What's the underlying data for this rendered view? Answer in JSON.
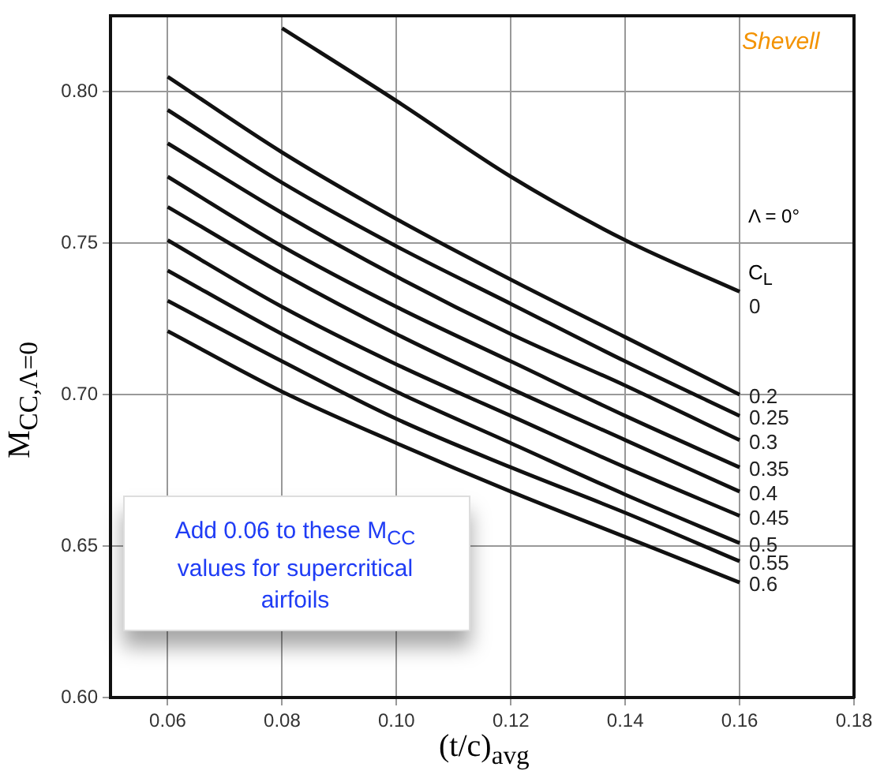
{
  "chart_data": {
    "type": "line",
    "xlabel": "(t/c)$_{avg}$",
    "ylabel": "M$_{CC,Λ=0}$",
    "legend_title": "C$_{L}$",
    "annotations": [
      "Shevell",
      "Λ = 0°",
      "Add 0.06 to these M$_{CC}$ values for supercritical airfoils"
    ],
    "x": [
      0.06,
      0.08,
      0.1,
      0.12,
      0.14,
      0.16
    ],
    "xlim": [
      0.05,
      0.18
    ],
    "xticks": [
      0.06,
      0.08,
      {
        "value": 0.1,
        "label": "0.10"
      },
      0.12,
      0.14,
      0.16,
      0.18
    ],
    "ylim": [
      0.6,
      0.825
    ],
    "yticks": [
      {
        "value": 0.6,
        "label": "0.60"
      },
      0.65,
      {
        "value": 0.7,
        "label": "0.70"
      },
      0.75,
      {
        "value": 0.8,
        "label": "0.80"
      }
    ],
    "grid": true,
    "legend": false,
    "marker": "none",
    "line_style": "solid",
    "series": [
      {
        "name": "0",
        "color": "#111111",
        "values": [
          null,
          0.821,
          0.797,
          0.772,
          0.751,
          0.734
        ]
      },
      {
        "name": "0.2",
        "color": "#111111",
        "values": [
          0.805,
          0.78,
          0.758,
          0.738,
          0.719,
          0.7
        ]
      },
      {
        "name": "0.25",
        "color": "#111111",
        "values": [
          0.794,
          0.77,
          0.749,
          0.73,
          0.711,
          0.693
        ]
      },
      {
        "name": "0.3",
        "color": "#111111",
        "values": [
          0.783,
          0.76,
          0.739,
          0.72,
          0.703,
          0.685
        ]
      },
      {
        "name": "0.35",
        "color": "#111111",
        "values": [
          0.772,
          0.749,
          0.729,
          0.711,
          0.693,
          0.676
        ]
      },
      {
        "name": "0.4",
        "color": "#111111",
        "values": [
          0.762,
          0.74,
          0.72,
          0.702,
          0.685,
          0.668
        ]
      },
      {
        "name": "0.45",
        "color": "#111111",
        "values": [
          0.751,
          0.729,
          0.71,
          0.693,
          0.676,
          0.66
        ]
      },
      {
        "name": "0.5",
        "color": "#111111",
        "values": [
          0.741,
          0.72,
          0.701,
          0.684,
          0.667,
          0.651
        ]
      },
      {
        "name": "0.55",
        "color": "#111111",
        "values": [
          0.731,
          0.711,
          0.692,
          0.676,
          0.661,
          0.645
        ]
      },
      {
        "name": "0.6",
        "color": "#111111",
        "values": [
          0.721,
          0.701,
          0.684,
          0.668,
          0.653,
          0.638
        ]
      }
    ]
  }
}
